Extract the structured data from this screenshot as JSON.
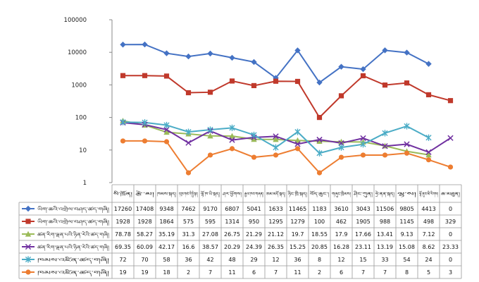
{
  "chart_data": {
    "type": "line",
    "y_scale": "log",
    "ylim": [
      1,
      100000
    ],
    "y_ticks": [
      "1",
      "10",
      "100",
      "1000",
      "10000",
      "100000"
    ],
    "grid": false,
    "legend": "data-table-left",
    "categories": [
      "སི་ཁྲོན།",
      "རྩེ་མ།",
      "ཁམས་སྐད།",
      "དབུས་གཙང་གི་སྤྱི་སྐད།",
      "ལྷོ་ཁ་ཡི་སྐད།",
      "ཤར་ཕྱོགས།",
      "རྒྱལ་ཁབ་གཞན།",
      "ཨམ་མདོ་སྐད།",
      "ཉིང་ཁྲི་སྐད།",
      "བོད་ཆུང་།",
      "གཞུང་ཁྲིམས།",
      "ཤིང་ཀུན།",
      "ཧྲེ་ནན་སྐད།",
      "ལྷ་ས།",
      "ལྷོ་ནུབ་མི་རིགས།",
      "ཆ་མཐུན།"
    ],
    "series": [
      {
        "name": "ཡིག་ཆའི་འགྲེལ་བཤད་ཚད་གཞི།",
        "color": "#4472C4",
        "marker": "diamond",
        "values": [
          17260,
          17408,
          9348,
          7462,
          9170,
          6807,
          5041,
          1633,
          11465,
          1183,
          3610,
          3043,
          11506,
          9805,
          4413,
          0
        ],
        "labels": [
          "17260",
          "17408",
          "9348",
          "7462",
          "9170",
          "6807",
          "5041",
          "1633",
          "11465",
          "1183",
          "3610",
          "3043",
          "11506",
          "9805",
          "4413",
          "0"
        ]
      },
      {
        "name": "ཡིག་ཆའི་འགྲེལ་བཤད་ཚད་གཞི།",
        "color": "#C0392B",
        "marker": "square",
        "values": [
          1928,
          1928,
          1864,
          575,
          595,
          1314,
          950,
          1295,
          1279,
          100,
          462,
          1905,
          988,
          1145,
          498,
          329
        ],
        "labels": [
          "1928",
          "1928",
          "1864",
          "575",
          "595",
          "1314",
          "950",
          "1295",
          "1279",
          "100",
          "462",
          "1905",
          "988",
          "1145",
          "498",
          "329"
        ]
      },
      {
        "name": "ཚན་རིག་ལྡན་པའི་ཉིན་རེའི་ཚད་གཞི།",
        "color": "#9BBB59",
        "marker": "triangle",
        "values": [
          78.78,
          58.27,
          35.19,
          31.3,
          27.08,
          26.75,
          21.29,
          21.12,
          19.7,
          18.55,
          17.9,
          17.66,
          13.41,
          9.13,
          7.12,
          0
        ],
        "labels": [
          "78.78",
          "58.27",
          "35.19",
          "31.3",
          "27.08",
          "26.75",
          "21.29",
          "21.12",
          "19.7",
          "18.55",
          "17.9",
          "17.66",
          "13.41",
          "9.13",
          "7.12",
          "0"
        ]
      },
      {
        "name": "ཚན་རིག་ལྡན་པའི་ཉིན་རེའི་ཚད་གཞི།",
        "color": "#7030A0",
        "marker": "x",
        "values": [
          69.35,
          60.09,
          42.17,
          16.6,
          38.57,
          20.29,
          24.39,
          26.35,
          15.25,
          20.85,
          16.28,
          23.11,
          13.19,
          15.08,
          8.62,
          23.33
        ],
        "labels": [
          "69.35",
          "60.09",
          "42.17",
          "16.6",
          "38.57",
          "20.29",
          "24.39",
          "26.35",
          "15.25",
          "20.85",
          "16.28",
          "23.11",
          "13.19",
          "15.08",
          "8.62",
          "23.33"
        ]
      },
      {
        "name": "ཁམས་འཛིན་ཚད་གཞི།",
        "color": "#4BACC6",
        "marker": "star",
        "values": [
          72,
          70,
          58,
          36,
          42,
          48,
          29,
          12,
          36,
          8,
          12,
          15,
          33,
          54,
          24,
          0
        ],
        "labels": [
          "72",
          "70",
          "58",
          "36",
          "42",
          "48",
          "29",
          "12",
          "36",
          "8",
          "12",
          "15",
          "33",
          "54",
          "24",
          "0"
        ]
      },
      {
        "name": "ཁམས་འཛིན་ཚད་གཞི།",
        "color": "#ED7D31",
        "marker": "circle",
        "values": [
          19,
          19,
          18,
          2,
          7,
          11,
          6,
          7,
          11,
          2,
          6,
          7,
          7,
          8,
          5,
          3
        ],
        "labels": [
          "19",
          "19",
          "18",
          "2",
          "7",
          "11",
          "6",
          "7",
          "11",
          "2",
          "6",
          "7",
          "7",
          "8",
          "5",
          "3"
        ]
      }
    ]
  }
}
